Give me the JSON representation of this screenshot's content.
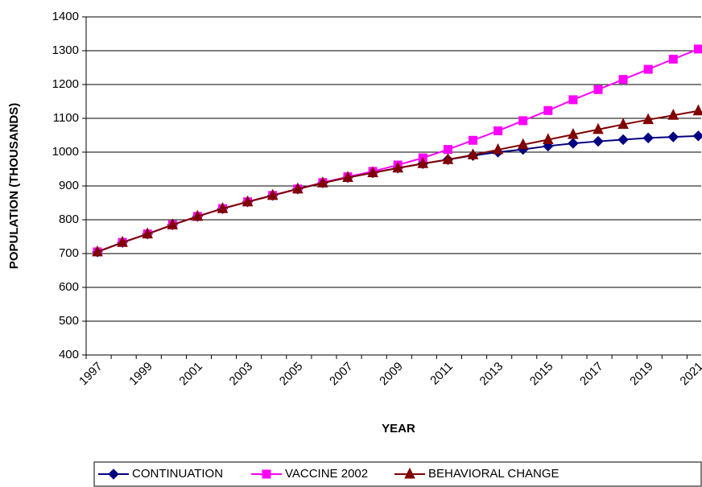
{
  "chart_data": {
    "type": "line",
    "xlabel": "YEAR",
    "ylabel": "POPULATION (THOUSANDS)",
    "categories": [
      "1997",
      null,
      "1999",
      null,
      "2001",
      null,
      "2003",
      null,
      "2005",
      null,
      "2007",
      null,
      "2009",
      null,
      "2011",
      null,
      "2013",
      null,
      "2015",
      null,
      "2017",
      null,
      "2019",
      null,
      "2021"
    ],
    "series": [
      {
        "name": "CONTINUATION",
        "color": "#000080",
        "marker": "diamond",
        "values": [
          705,
          733,
          758,
          785,
          810,
          833,
          853,
          872,
          891,
          909,
          925,
          939,
          953,
          966,
          978,
          990,
          1000,
          1008,
          1018,
          1026,
          1032,
          1037,
          1042,
          1045,
          1048
        ]
      },
      {
        "name": "VACCINE 2002",
        "color": "#ff00ff",
        "marker": "square",
        "values": [
          705,
          733,
          758,
          785,
          810,
          833,
          853,
          872,
          891,
          910,
          927,
          943,
          962,
          983,
          1008,
          1035,
          1063,
          1093,
          1123,
          1155,
          1185,
          1215,
          1245,
          1275,
          1305
        ]
      },
      {
        "name": "BEHAVIORAL CHANGE",
        "color": "#800000",
        "marker": "triangle",
        "values": [
          705,
          733,
          758,
          785,
          810,
          833,
          853,
          872,
          891,
          909,
          925,
          939,
          953,
          966,
          978,
          992,
          1007,
          1022,
          1037,
          1052,
          1067,
          1082,
          1096,
          1109,
          1122
        ]
      }
    ],
    "ylim": [
      400,
      1400
    ],
    "yticks": [
      400,
      500,
      600,
      700,
      800,
      900,
      1000,
      1100,
      1200,
      1300,
      1400
    ],
    "grid": true,
    "legend": "bottom"
  }
}
